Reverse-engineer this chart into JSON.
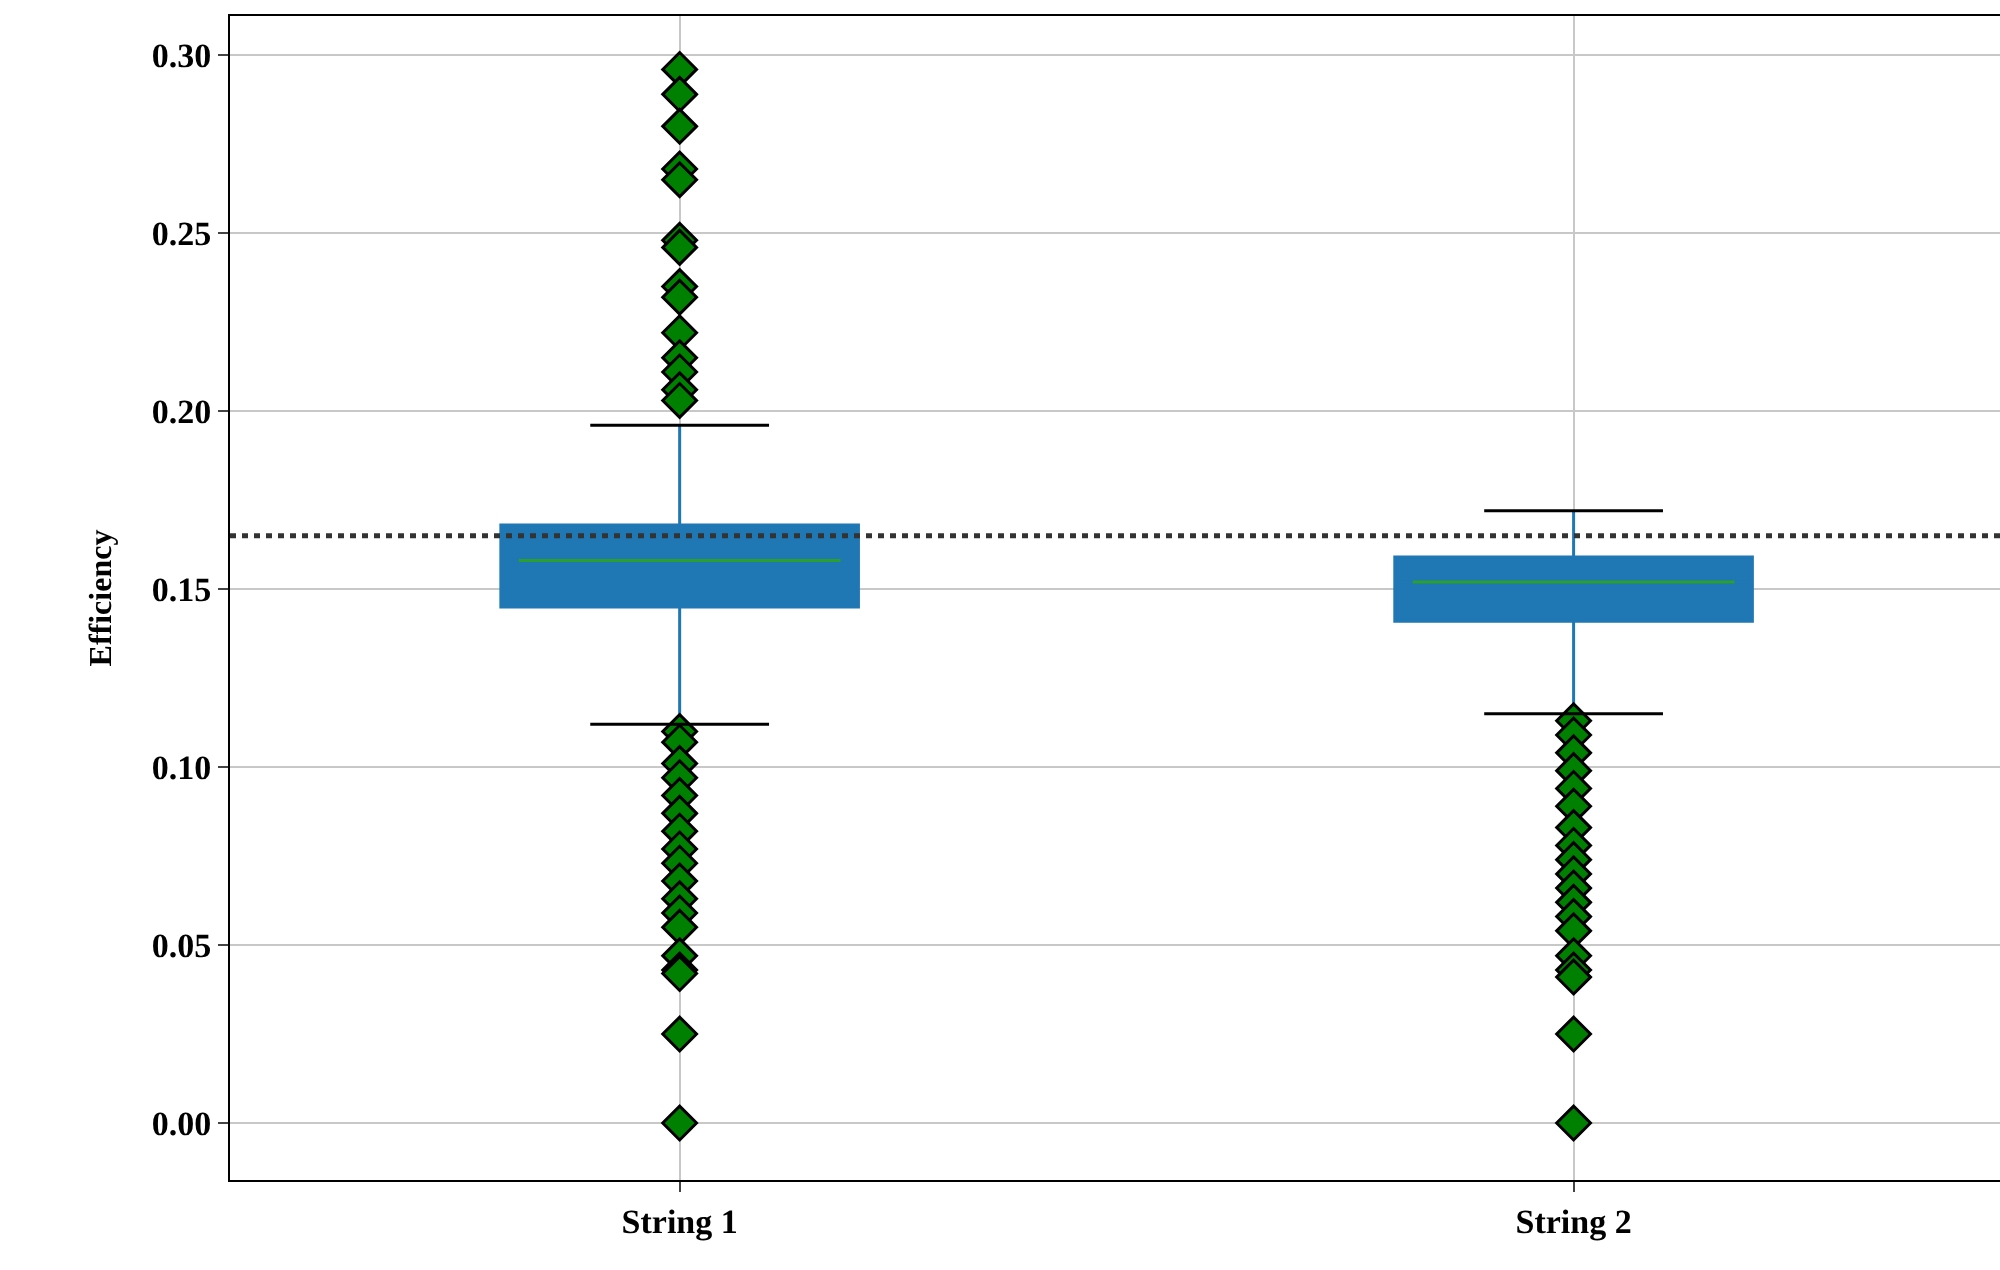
{
  "chart_data": {
    "type": "box",
    "ylabel": "Efficiency",
    "categories": [
      "String 1",
      "String 2"
    ],
    "boxes": [
      {
        "low": 0.112,
        "q1": 0.145,
        "median": 0.158,
        "q3": 0.168,
        "high": 0.196,
        "outliers": [
          0.296,
          0.289,
          0.28,
          0.268,
          0.265,
          0.248,
          0.246,
          0.235,
          0.232,
          0.222,
          0.215,
          0.211,
          0.206,
          0.203,
          0.11,
          0.107,
          0.101,
          0.097,
          0.092,
          0.087,
          0.082,
          0.077,
          0.073,
          0.068,
          0.063,
          0.059,
          0.055,
          0.047,
          0.043,
          0.042,
          0.025,
          0.0
        ]
      },
      {
        "low": 0.115,
        "q1": 0.141,
        "median": 0.152,
        "q3": 0.159,
        "high": 0.172,
        "outliers": [
          0.113,
          0.109,
          0.104,
          0.099,
          0.094,
          0.089,
          0.083,
          0.078,
          0.074,
          0.07,
          0.066,
          0.062,
          0.058,
          0.054,
          0.047,
          0.043,
          0.041,
          0.025,
          0.0
        ]
      }
    ],
    "color": "#1f77b4",
    "ylim": [
      -0.016,
      0.311
    ],
    "yticks": [
      {
        "value": 0,
        "label": "0.00"
      },
      {
        "value": 0.05,
        "label": "0.05"
      },
      {
        "value": 0.1,
        "label": "0.10"
      },
      {
        "value": 0.15,
        "label": "0.15"
      },
      {
        "value": 0.2,
        "label": "0.20"
      },
      {
        "value": 0.25,
        "label": "0.25"
      },
      {
        "value": 0.3,
        "label": "0.30"
      }
    ],
    "ref_lines": [
      {
        "axis": "y",
        "value": 0.165,
        "color": "#333333",
        "line_style": "dotted"
      }
    ],
    "grid": true,
    "marker": "diamond"
  }
}
